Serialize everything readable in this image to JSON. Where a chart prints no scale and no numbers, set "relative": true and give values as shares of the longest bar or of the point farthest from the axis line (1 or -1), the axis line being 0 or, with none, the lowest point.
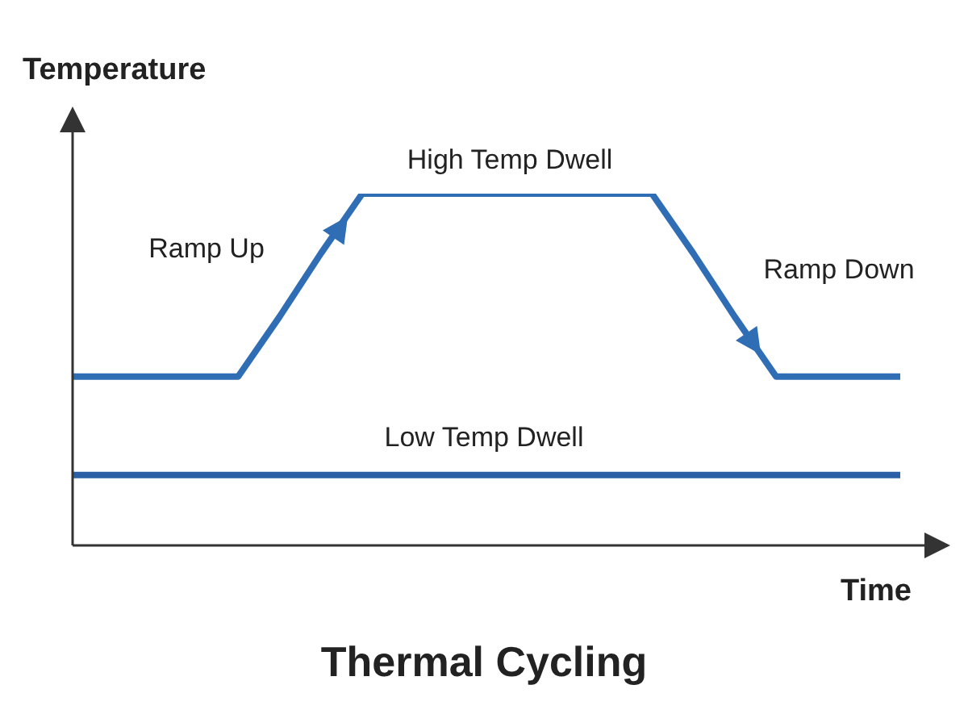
{
  "chart_data": {
    "type": "line",
    "relative": true,
    "title": "Thermal Cycling",
    "xlabel": "Time",
    "ylabel": "Temperature",
    "categories": [
      null,
      null,
      null,
      null,
      null,
      null,
      null,
      null,
      null,
      null,
      null,
      null,
      null,
      null,
      null,
      null,
      null,
      null,
      null,
      null,
      null
    ],
    "series": [
      {
        "color": "#2f6db5",
        "values": [
          0.48,
          0.48,
          0.48,
          0.48,
          0.48,
          0.65,
          0.83,
          1,
          1,
          1,
          1,
          1,
          1,
          1,
          1,
          0.83,
          0.65,
          0.48,
          0.48,
          0.48,
          0.48
        ]
      },
      {
        "color": "#2b5fa6",
        "values": [
          0.2,
          0.2,
          0.2,
          0.2,
          0.2,
          0.2,
          0.2,
          0.2,
          0.2,
          0.2,
          0.2,
          0.2,
          0.2,
          0.2,
          0.2,
          0.2,
          0.2,
          0.2,
          0.2,
          0.2,
          0.2
        ]
      }
    ],
    "annotations": [
      "Ramp Up",
      "High Temp Dwell",
      "Ramp Down",
      "Low Temp Dwell"
    ]
  }
}
